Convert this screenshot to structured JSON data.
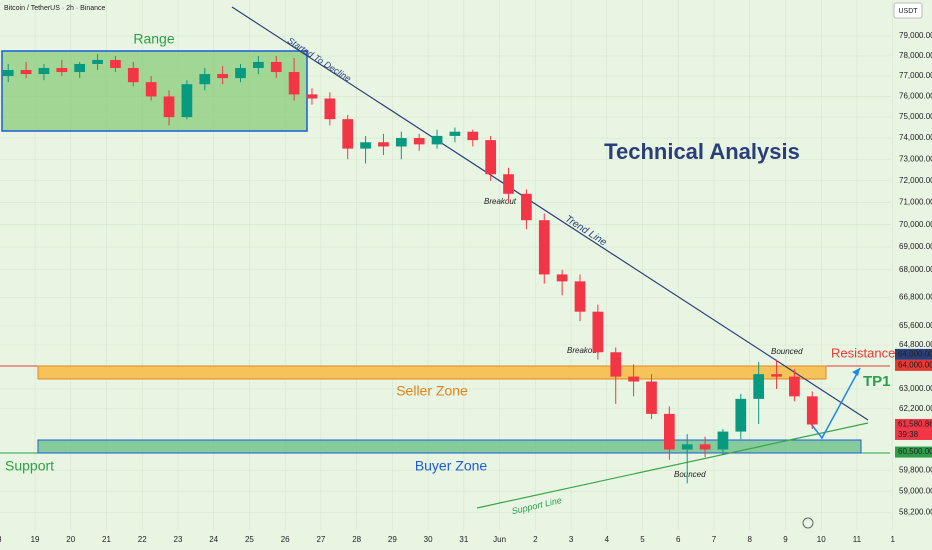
{
  "chart_data": {
    "type": "candlestick",
    "title": "Bitcoin / TetherUS · 2h · Binance",
    "currency": "USDT",
    "log_scale": true,
    "up_color": "#089981",
    "down_color": "#f23645",
    "x": [
      0.25,
      0.75,
      1.25,
      1.75,
      2.25,
      2.75,
      3.25,
      3.75,
      4.25,
      4.75,
      5.25,
      5.75,
      6.25,
      6.75,
      7.25,
      7.75,
      8.25,
      8.75,
      9.25,
      9.75,
      10.25,
      10.75,
      11.25,
      11.75,
      12.25,
      12.75,
      13.25,
      13.75,
      14.25,
      14.75,
      15.25,
      15.75,
      16.25,
      16.75,
      17.25,
      17.75,
      18.25,
      18.75,
      19.25,
      19.75,
      20.25,
      20.75,
      21.25,
      21.75,
      22.25,
      22.75
    ],
    "open": [
      77000,
      77300,
      77100,
      77400,
      77200,
      77600,
      77800,
      77400,
      76700,
      76000,
      75000,
      76600,
      77100,
      76900,
      77400,
      77700,
      77200,
      76100,
      75900,
      74900,
      73500,
      73800,
      73600,
      74000,
      73700,
      74100,
      74300,
      73900,
      72300,
      71400,
      70200,
      67800,
      67500,
      66200,
      64500,
      63500,
      63300,
      62000,
      60600,
      60800,
      60600,
      61300,
      62600,
      63600,
      63500,
      62700
    ],
    "high": [
      77600,
      77700,
      77600,
      77800,
      77700,
      78100,
      78000,
      77700,
      77000,
      76300,
      76800,
      77400,
      77500,
      77600,
      78000,
      78000,
      77900,
      76400,
      76200,
      75100,
      74100,
      74200,
      74300,
      74200,
      74400,
      74500,
      74400,
      74100,
      72600,
      71600,
      70500,
      68000,
      67800,
      66500,
      64700,
      64000,
      63600,
      62300,
      61200,
      61100,
      61400,
      62800,
      64100,
      64200,
      63800,
      62900
    ],
    "low": [
      76700,
      76900,
      76800,
      77000,
      76900,
      77300,
      77200,
      76500,
      75800,
      74600,
      74900,
      76300,
      76600,
      76700,
      77100,
      76900,
      75800,
      75600,
      74600,
      73000,
      72800,
      73200,
      73000,
      73400,
      73500,
      73800,
      73600,
      72000,
      71000,
      69800,
      67400,
      66900,
      65800,
      64200,
      62400,
      62700,
      61800,
      60200,
      59300,
      60300,
      60400,
      61000,
      61600,
      63000,
      62500,
      61400
    ],
    "close": [
      77300,
      77100,
      77400,
      77200,
      77600,
      77800,
      77400,
      76700,
      76000,
      75000,
      76600,
      77100,
      76900,
      77400,
      77700,
      77200,
      76100,
      75900,
      74900,
      73500,
      73800,
      73600,
      74000,
      73700,
      74100,
      74300,
      73900,
      72300,
      71400,
      70200,
      67800,
      67500,
      66200,
      64500,
      63500,
      63300,
      62000,
      60600,
      60800,
      60600,
      61300,
      62600,
      63600,
      63500,
      62700,
      61580.86
    ],
    "xlim": [
      0.02,
      26.1
    ],
    "ylim": [
      57550,
      80850
    ],
    "xticks": [
      {
        "value": 0,
        "label": "8"
      },
      {
        "value": 1,
        "label": "19"
      },
      {
        "value": 2,
        "label": "20"
      },
      {
        "value": 3,
        "label": "21"
      },
      {
        "value": 4,
        "label": "22"
      },
      {
        "value": 5,
        "label": "23"
      },
      {
        "value": 6,
        "label": "24"
      },
      {
        "value": 7,
        "label": "25"
      },
      {
        "value": 8,
        "label": "26"
      },
      {
        "value": 9,
        "label": "27"
      },
      {
        "value": 10,
        "label": "28"
      },
      {
        "value": 11,
        "label": "29"
      },
      {
        "value": 12,
        "label": "30"
      },
      {
        "value": 13,
        "label": "31"
      },
      {
        "value": 14,
        "label": "Jun"
      },
      {
        "value": 15,
        "label": "2"
      },
      {
        "value": 16,
        "label": "3"
      },
      {
        "value": 17,
        "label": "4"
      },
      {
        "value": 18,
        "label": "5"
      },
      {
        "value": 19,
        "label": "6"
      },
      {
        "value": 20,
        "label": "7"
      },
      {
        "value": 21,
        "label": "8"
      },
      {
        "value": 22,
        "label": "9"
      },
      {
        "value": 23,
        "label": "10"
      },
      {
        "value": 24,
        "label": "11"
      },
      {
        "value": 25,
        "label": "1"
      }
    ],
    "yticks": [
      {
        "value": 79000,
        "label": "79,000.00"
      },
      {
        "value": 78000,
        "label": "78,000.00"
      },
      {
        "value": 77000,
        "label": "77,000.00"
      },
      {
        "value": 76000,
        "label": "76,000.00"
      },
      {
        "value": 75000,
        "label": "75,000.00"
      },
      {
        "value": 74000,
        "label": "74,000.00"
      },
      {
        "value": 73000,
        "label": "73,000.00"
      },
      {
        "value": 72000,
        "label": "72,000.00"
      },
      {
        "value": 71000,
        "label": "71,000.00"
      },
      {
        "value": 70000,
        "label": "70,000.00"
      },
      {
        "value": 69000,
        "label": "69,000.00"
      },
      {
        "value": 68000,
        "label": "68,000.00"
      },
      {
        "value": 66800,
        "label": "66,800.00"
      },
      {
        "value": 65600,
        "label": "65,600.00"
      },
      {
        "value": 64800,
        "label": "64,800.00"
      },
      {
        "value": 63000,
        "label": "63,000.00"
      },
      {
        "value": 62200,
        "label": "62,200.00"
      },
      {
        "value": 59800,
        "label": "59,800.00"
      },
      {
        "value": 59000,
        "label": "59,000.00"
      },
      {
        "value": 58200,
        "label": "58,200.00"
      }
    ],
    "price_tags": [
      {
        "value": 64000,
        "label": "64,000.00",
        "color": "#2c3e7a"
      },
      {
        "value": 64000,
        "label": "64,000.00",
        "color": "#e53935"
      },
      {
        "value": 61580.86,
        "label": "61,580.86",
        "color": "#f23645"
      },
      {
        "value": 60500,
        "label": "60,500.00",
        "color": "#2e9e4a"
      }
    ],
    "countdown": "39:38"
  },
  "annotations": {
    "range": "Range",
    "started": "Started To Decline",
    "trend_line": "Trend Line",
    "breakout_1": "Breakout",
    "breakout_2": "Breakout",
    "headline": "Technical Analysis",
    "bounced_1": "Bounced",
    "bounced_2": "Bounced",
    "resistance": "Resistance",
    "tp1": "TP1",
    "seller_zone": "Seller Zone",
    "buyer_zone": "Buyer Zone",
    "support": "Support",
    "support_line": "Support Line"
  }
}
